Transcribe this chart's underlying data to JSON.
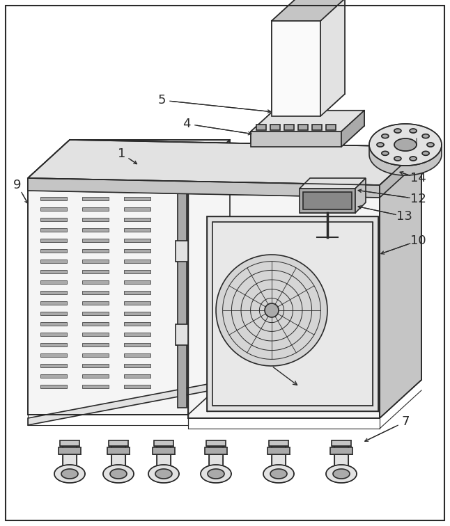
{
  "bg_color": "#ffffff",
  "line_color": "#2a2a2a",
  "light_fill": "#f5f5f5",
  "mid_fill": "#e2e2e2",
  "dark_fill": "#c5c5c5",
  "shadow_fill": "#aaaaaa",
  "very_light": "#fafafa",
  "label_fontsize": 13,
  "figsize": [
    6.46,
    7.56
  ],
  "dpi": 100
}
